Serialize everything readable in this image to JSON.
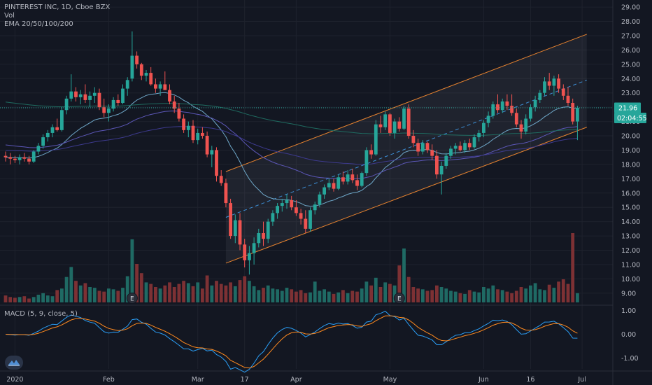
{
  "chart_data": {
    "type": "candlestick",
    "header": {
      "symbol": "PINTEREST INC, 1D, Cboe BZX",
      "vol": "Vol",
      "ema": "EMA 20/50/100/200"
    },
    "price_axis": {
      "ticks": [
        "29.00",
        "28.00",
        "27.00",
        "26.00",
        "25.00",
        "24.00",
        "23.00",
        "22.00",
        "21.00",
        "20.00",
        "19.00",
        "18.00",
        "17.00",
        "16.00",
        "15.00",
        "14.00",
        "13.00",
        "12.00",
        "11.00",
        "10.00",
        "9.00"
      ],
      "min": 8.6,
      "max": 29.2
    },
    "last_price": {
      "label": "21.96",
      "value": 21.96
    },
    "countdown": {
      "label": "02:04:55",
      "value": 21.25
    },
    "x_axis": {
      "labels": [
        {
          "text": "2020",
          "index": 2
        },
        {
          "text": "Feb",
          "index": 22
        },
        {
          "text": "Mar",
          "index": 41
        },
        {
          "text": "17",
          "index": 51
        },
        {
          "text": "Apr",
          "index": 62
        },
        {
          "text": "May",
          "index": 82
        },
        {
          "text": "Jun",
          "index": 102
        },
        {
          "text": "16",
          "index": 112
        },
        {
          "text": "Jul",
          "index": 123
        }
      ]
    },
    "events": [
      {
        "label": "E",
        "index": 27
      },
      {
        "label": "E",
        "index": 84
      }
    ],
    "channel": {
      "start_index": 47,
      "end_index": 124,
      "upper": [
        17.5,
        27.1
      ],
      "middle": [
        14.3,
        23.9
      ],
      "lower": [
        11.1,
        20.6
      ]
    },
    "candles": [
      [
        18.6,
        18.9,
        18.2,
        18.5
      ],
      [
        18.5,
        18.8,
        18.0,
        18.4
      ],
      [
        18.4,
        18.6,
        18.1,
        18.3
      ],
      [
        18.3,
        18.7,
        18.0,
        18.5
      ],
      [
        18.5,
        18.8,
        18.2,
        18.4
      ],
      [
        18.4,
        18.6,
        18.0,
        18.2
      ],
      [
        18.2,
        19.0,
        18.1,
        18.9
      ],
      [
        18.9,
        19.5,
        18.7,
        19.3
      ],
      [
        19.3,
        20.1,
        19.1,
        19.9
      ],
      [
        19.9,
        20.4,
        19.6,
        20.2
      ],
      [
        20.2,
        20.8,
        19.9,
        20.6
      ],
      [
        20.6,
        21.2,
        20.3,
        20.4
      ],
      [
        20.4,
        22.0,
        20.3,
        21.8
      ],
      [
        21.8,
        22.8,
        21.5,
        22.6
      ],
      [
        22.6,
        24.3,
        22.4,
        23.1
      ],
      [
        23.1,
        23.4,
        22.4,
        22.7
      ],
      [
        22.7,
        23.2,
        22.2,
        22.9
      ],
      [
        22.9,
        23.6,
        22.3,
        22.5
      ],
      [
        22.5,
        23.1,
        22.0,
        22.8
      ],
      [
        22.8,
        23.4,
        22.3,
        23.0
      ],
      [
        23.0,
        23.3,
        21.8,
        22.0
      ],
      [
        22.0,
        22.6,
        21.3,
        21.6
      ],
      [
        21.6,
        22.2,
        21.0,
        21.9
      ],
      [
        21.9,
        22.7,
        21.7,
        22.5
      ],
      [
        22.5,
        22.9,
        22.1,
        22.3
      ],
      [
        22.3,
        23.6,
        22.2,
        23.3
      ],
      [
        23.3,
        24.1,
        22.8,
        23.9
      ],
      [
        24.0,
        27.3,
        23.8,
        25.6
      ],
      [
        25.6,
        25.9,
        24.7,
        25.0
      ],
      [
        25.0,
        25.1,
        23.9,
        24.2
      ],
      [
        24.2,
        24.6,
        23.8,
        24.4
      ],
      [
        24.4,
        24.8,
        23.5,
        23.6
      ],
      [
        23.6,
        24.0,
        23.0,
        23.3
      ],
      [
        23.3,
        23.8,
        22.8,
        23.6
      ],
      [
        23.6,
        24.5,
        23.2,
        23.2
      ],
      [
        23.2,
        23.6,
        22.2,
        22.4
      ],
      [
        22.4,
        22.8,
        21.6,
        21.9
      ],
      [
        21.9,
        22.3,
        21.0,
        21.2
      ],
      [
        21.2,
        21.5,
        20.2,
        20.4
      ],
      [
        20.4,
        21.0,
        19.9,
        20.7
      ],
      [
        20.7,
        21.1,
        19.5,
        19.7
      ],
      [
        19.7,
        20.5,
        19.4,
        20.2
      ],
      [
        20.2,
        20.6,
        19.8,
        20.0
      ],
      [
        20.0,
        20.3,
        18.5,
        18.7
      ],
      [
        18.7,
        19.3,
        17.8,
        19.0
      ],
      [
        19.0,
        19.2,
        16.8,
        17.2
      ],
      [
        17.2,
        17.6,
        16.5,
        16.7
      ],
      [
        16.7,
        17.0,
        15.0,
        15.3
      ],
      [
        15.3,
        15.6,
        12.8,
        13.0
      ],
      [
        13.0,
        14.5,
        12.5,
        14.1
      ],
      [
        14.1,
        14.6,
        12.0,
        12.4
      ],
      [
        12.4,
        12.8,
        10.8,
        11.3
      ],
      [
        11.3,
        12.3,
        10.3,
        11.8
      ],
      [
        11.8,
        12.9,
        11.0,
        12.5
      ],
      [
        12.5,
        13.5,
        12.2,
        13.2
      ],
      [
        13.2,
        14.0,
        12.3,
        12.8
      ],
      [
        12.8,
        14.2,
        12.5,
        14.0
      ],
      [
        14.0,
        14.8,
        13.7,
        14.6
      ],
      [
        14.6,
        15.3,
        14.2,
        15.1
      ],
      [
        15.1,
        15.6,
        14.7,
        15.3
      ],
      [
        15.3,
        15.9,
        14.9,
        15.5
      ],
      [
        15.5,
        15.8,
        14.8,
        15.0
      ],
      [
        15.0,
        15.5,
        14.4,
        14.6
      ],
      [
        14.6,
        14.9,
        13.8,
        14.2
      ],
      [
        14.2,
        14.8,
        13.2,
        13.5
      ],
      [
        13.5,
        15.0,
        13.3,
        14.8
      ],
      [
        14.8,
        15.4,
        14.5,
        15.2
      ],
      [
        15.2,
        16.1,
        15.0,
        15.9
      ],
      [
        15.9,
        16.6,
        15.6,
        16.4
      ],
      [
        16.4,
        17.0,
        16.2,
        16.7
      ],
      [
        16.7,
        17.0,
        16.1,
        16.3
      ],
      [
        16.3,
        17.3,
        16.2,
        17.1
      ],
      [
        17.1,
        17.5,
        16.6,
        16.8
      ],
      [
        16.8,
        17.6,
        16.6,
        17.3
      ],
      [
        17.3,
        17.7,
        16.7,
        16.9
      ],
      [
        16.9,
        17.3,
        16.2,
        16.5
      ],
      [
        16.5,
        17.5,
        16.4,
        17.4
      ],
      [
        17.4,
        19.2,
        17.2,
        19.0
      ],
      [
        19.0,
        19.4,
        18.4,
        18.7
      ],
      [
        18.7,
        21.1,
        18.6,
        20.8
      ],
      [
        20.8,
        21.4,
        20.2,
        20.6
      ],
      [
        20.6,
        21.7,
        20.4,
        21.5
      ],
      [
        21.5,
        21.6,
        20.0,
        20.2
      ],
      [
        20.2,
        21.2,
        19.8,
        21.0
      ],
      [
        21.0,
        21.3,
        20.3,
        20.5
      ],
      [
        20.5,
        22.1,
        20.4,
        21.9
      ],
      [
        21.9,
        22.2,
        19.8,
        20.0
      ],
      [
        20.0,
        20.4,
        19.2,
        19.5
      ],
      [
        19.5,
        19.8,
        18.6,
        18.9
      ],
      [
        18.9,
        19.7,
        18.7,
        19.5
      ],
      [
        19.5,
        19.6,
        18.8,
        19.0
      ],
      [
        19.0,
        19.4,
        18.3,
        18.6
      ],
      [
        18.6,
        19.0,
        17.0,
        17.3
      ],
      [
        17.3,
        18.2,
        15.9,
        17.9
      ],
      [
        17.9,
        18.8,
        17.7,
        18.6
      ],
      [
        18.6,
        19.3,
        18.4,
        19.1
      ],
      [
        19.1,
        19.5,
        18.7,
        19.3
      ],
      [
        19.3,
        19.6,
        18.9,
        19.0
      ],
      [
        19.0,
        19.7,
        18.8,
        19.5
      ],
      [
        19.5,
        19.8,
        19.0,
        19.2
      ],
      [
        19.2,
        20.1,
        19.1,
        19.9
      ],
      [
        19.9,
        20.4,
        19.6,
        20.2
      ],
      [
        20.2,
        21.1,
        19.9,
        20.9
      ],
      [
        20.9,
        21.7,
        20.6,
        21.4
      ],
      [
        21.4,
        22.4,
        21.2,
        22.2
      ],
      [
        22.2,
        22.9,
        21.6,
        21.8
      ],
      [
        21.8,
        22.6,
        21.6,
        22.4
      ],
      [
        22.4,
        22.9,
        21.8,
        22.1
      ],
      [
        22.1,
        22.9,
        21.4,
        21.6
      ],
      [
        21.6,
        21.9,
        20.6,
        20.8
      ],
      [
        20.8,
        21.1,
        19.8,
        20.3
      ],
      [
        20.3,
        21.5,
        20.1,
        21.2
      ],
      [
        21.2,
        22.2,
        21.0,
        22.0
      ],
      [
        22.0,
        22.8,
        21.7,
        22.5
      ],
      [
        22.5,
        23.2,
        22.3,
        23.0
      ],
      [
        23.0,
        24.1,
        22.8,
        23.8
      ],
      [
        23.8,
        24.4,
        23.2,
        23.5
      ],
      [
        23.5,
        24.2,
        22.8,
        24.0
      ],
      [
        24.0,
        24.3,
        23.0,
        23.3
      ],
      [
        23.3,
        23.6,
        22.5,
        22.8
      ],
      [
        22.8,
        23.4,
        22.1,
        22.3
      ],
      [
        22.3,
        22.6,
        20.8,
        21.0
      ],
      [
        21.0,
        22.1,
        19.7,
        21.96
      ]
    ],
    "volume": [
      0.09,
      0.07,
      0.06,
      0.07,
      0.08,
      0.05,
      0.07,
      0.1,
      0.12,
      0.09,
      0.08,
      0.16,
      0.18,
      0.33,
      0.46,
      0.28,
      0.22,
      0.25,
      0.2,
      0.19,
      0.15,
      0.14,
      0.18,
      0.17,
      0.15,
      0.19,
      0.34,
      0.82,
      0.5,
      0.38,
      0.26,
      0.24,
      0.2,
      0.18,
      0.22,
      0.26,
      0.2,
      0.24,
      0.28,
      0.25,
      0.21,
      0.26,
      0.18,
      0.35,
      0.22,
      0.28,
      0.24,
      0.22,
      0.26,
      0.21,
      0.29,
      0.34,
      0.28,
      0.21,
      0.16,
      0.19,
      0.22,
      0.18,
      0.17,
      0.15,
      0.19,
      0.17,
      0.14,
      0.16,
      0.12,
      0.13,
      0.27,
      0.15,
      0.17,
      0.14,
      0.11,
      0.13,
      0.16,
      0.12,
      0.15,
      0.14,
      0.18,
      0.27,
      0.22,
      0.32,
      0.2,
      0.26,
      0.24,
      0.22,
      0.48,
      0.7,
      0.33,
      0.2,
      0.18,
      0.17,
      0.15,
      0.16,
      0.22,
      0.2,
      0.18,
      0.15,
      0.14,
      0.12,
      0.11,
      0.16,
      0.14,
      0.13,
      0.2,
      0.18,
      0.22,
      0.17,
      0.16,
      0.14,
      0.12,
      0.15,
      0.2,
      0.18,
      0.22,
      0.25,
      0.17,
      0.16,
      0.23,
      0.19,
      0.27,
      0.3,
      0.24,
      0.9,
      0.12
    ],
    "ema_periods": [
      20,
      50,
      100,
      200
    ],
    "ema_colors": [
      "#6fa8c9",
      "#5c57b8",
      "#3d3a8e",
      "#1f6b60"
    ],
    "macd": {
      "label": "MACD (5, 9, close, 5)",
      "params": [
        5,
        9,
        5
      ],
      "ticks": [
        "1.00",
        "0.00",
        "-1.00"
      ],
      "min": -1.45,
      "max": 1.1
    },
    "colors": {
      "up": "#26a69a",
      "down": "#ef5350",
      "vol_up": "#1f6a64",
      "vol_down": "#7d3134",
      "channel": "#e8832f",
      "macd": "#2a9df4",
      "signal": "#ff8a1f"
    }
  },
  "logo_icon": "tradingview-icon"
}
